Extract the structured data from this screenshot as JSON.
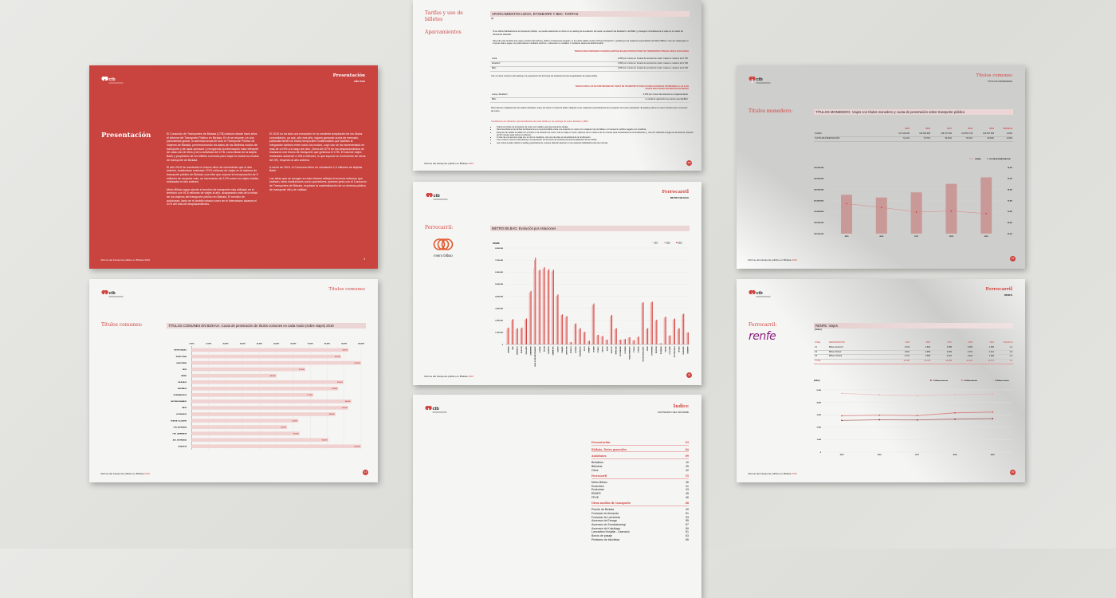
{
  "colors": {
    "accent": "#cf4540",
    "page_red": "#c9433f",
    "bar_light": "#f0d2d1",
    "renfe": "#8a1f80"
  },
  "common": {
    "logo_text": "ctb",
    "footer_text": "Informe del transporte público en Bizkaia",
    "footer_year": "2019"
  },
  "presentacion": {
    "header_title": "Presentación",
    "header_sub": "AÑO 2019",
    "heading": "Presentación",
    "page_number": "3",
    "col1": [
      "El Consorcio de Transportes de Bizkaia (CTB) elabora desde hace años el informe del Transporte Público en Bizkaia. En él se resume, en una panorámica global, la actividad anual de todo el Transporte Público de Viajeros de Bizkaia, pormenorizando los datos de los distintos modos de transporte y de cada operador y recogiendo la información más relevante de cada uno de ellos y de la actividad del CTB, como titular de la tarjeta Barik y propietario de los billetes comunes para viajar en todos los modos de transporte de Bizkaia.",
      "El año 2019 ha mantenido el mismo ritmo de crecimiento que el año anterior, habiéndose realizado 179,9 millones de viajes en el sistema de transporte público de Bizkaia, una cifra que supone la incorporación de 5 millones de usuarios más, un incremento de 2,9% sobre los viajes totales realizados el año anterior.",
      "Metro Bilbao sigue siendo el servicio de transporte más utilizado en el territorio con 91,6 millones de viajes al año, acaparando más de la mitad de los viajeros del transporte público en Bizkaia. El servicio de autobuses, tanto en el ámbito urbano como en el interurbano alcanza el 31% del total de desplazamientos."
    ],
    "col2": [
      "El 2019 no ha sido una excepción en la creciente aceptación de los títulos comunitarios, ya que, año tras año, siguen ganando cuota de mercado, particularmente los títulos temporales multimodales que facilitan la integración tarifaria entre todos los modos, cuyo uso se ha incrementado en más de un 5% a lo largo del año. Cerca del 87% de los desplazamientos se realizaron con títulos de transporte que gestiona el CTB. El total de viajes realizados asciende a 155,8 millones, lo que supone un incremento de cerca del 3%, respecto al año anterior.",
      "A cierre de 2019, el Consorcio tiene en circulación 1,9 millones de tarjetas Barik.",
      "Las cifras que se recogen en este informe reflejan el enorme esfuerzo que realizan, tanto instituciones como operadores, quienes junto con el Consorcio de Transportes de Bizkaia, impulsan la materialización de un sistema público de transporte útil y de calidad."
    ]
  },
  "tarifas": {
    "side_title": "Tarifas y uso de billetes",
    "side_sub": "Aparcamientos",
    "page_number": "100",
    "bar_title": "APARCAMIENTOS LEIOA, ETXEBARRI Y BEC. TARIFAS",
    "unit": "(€)",
    "intro": [
      "Si se utiliza habitualmente el transporte público, se puede estacionar el coche en el parking de la estación de Leioa, la estación de Etxebarri o del BEC y proseguir cómodamente el viaje en el medio de transporte deseado.",
      "Para ello solo tendrás que coger el ticket del parking, utilizar el transporte elegido y a la vuelta validar ambos (Ticket transporte* y parking) en la máquina expendedora de Metro Bilbao. Una vez dispongas el importe total a pagar, se podrá abonar mediante efectivo, o abonarlo en metálico o mediante tarjeta de débito/crédito."
    ],
    "table1_title": "TARIFAS PARA PERSONAS USUARIAS HABITUALES QUE PORTAN TICKET DE TRANSPORTE PÚBLICO HASTA 24:00 HORAS",
    "table1": [
      {
        "name": "Leioa",
        "value": "0,050 por minuto en horario de servicio de metro, hasta un máximo de 0,700"
      },
      {
        "name": "Etxebarri",
        "value": "0,050 por minuto en horario de servicio de metro, hasta un máximo de 0,700"
      },
      {
        "name": "BEC",
        "value": "0,050 por minuto en horario de servicio de metro, hasta un máximo de 0,700"
      }
    ],
    "note1": "Con el cierre nocturno del parking o la superación de 24 horas de estancia termina la aplicación de estas tarifas.",
    "table2_title": "TARIFAS PARA LOS NO PORTADORES DE TICKET DE TRANSPORTE PÚBLICO PARA ESTANCIAS SUPERIORES A LAS 24:00 HORAS NOCTURNAS SIN SERVICIO DE METRO",
    "table2": [
      {
        "name": "Leioa y Etxebarri",
        "value": "0,050 por minuto de estancia en el aparcamiento"
      },
      {
        "name": "BEC",
        "value": "La tarifa de aplicación los precios que fija BEC"
      }
    ],
    "note2": "Para abonar cualquiera de las tarifas indicadas, antes de retirar el vehículo deben dirigirse a las máquinas expendedoras de la estación de Leioa y Etxebarri. El parking ofrece el mismo horario que el servicio de metro.",
    "conditions_title": "Condiciones de utilización para beneficiarse de estas tarifas en los parkings de Leioa, Etxebarri y BEC:",
    "conditions": [
      "Todos los títulos de transporte de metro son válidos para las anteriores tarifas.",
      "Para beneficiarse de dichas bonificaciones es imprescindible entrar a la estación en metro con cualquier tipo de billete o el transporte público pagado con crediticia.",
      "Después de validar la salida con el ticket en la estación de metro, tras su viaje en metro, dispone de un máximo de 15 minutos para beneficiarse de la bonificación y, una vez realizado el pago de la estancia, dispone de 60 minutos para retirar el vehículo.",
      "Si tras de una persona viaja con el mismo crediticia, solo una de ellas se beneficiará de la bonificación.",
      "Con el cierre nocturno del parking o la superación de 24 horas de estancia termina la aplicación de las tarifas.",
      "Las motos pueden utilizar el parking gratuitamente, aunque deberán aparcar en los espacios habilitados para las mismas."
    ]
  },
  "metro": {
    "header_title": "Ferrocarril",
    "header_sub": "METRO BILBAO",
    "side_title": "Ferrocarril:",
    "logo_text": "metro bilbao",
    "page_number": "36",
    "chart_title": "METRO BILBAO. Evolución por estaciones"
  },
  "indice": {
    "header_title": "Índice",
    "header_sub": "CONTENIDO DEL INFORME",
    "items": [
      {
        "label": "Presentación",
        "page": "03",
        "section": true
      },
      {
        "label": "Bizkaia. Datos generales",
        "page": "04",
        "section": true
      },
      {
        "label": "Autobuses",
        "page": "09",
        "section": true
      },
      {
        "label": "Bizkaibus",
        "page": "10"
      },
      {
        "label": "Bilbobus",
        "page": "25"
      },
      {
        "label": "Otros",
        "page": "32"
      },
      {
        "label": "Ferrocarril",
        "page": "35",
        "section": true
      },
      {
        "label": "Metro Bilbao",
        "page": "36"
      },
      {
        "label": "Euskotren",
        "page": "41"
      },
      {
        "label": "Euskotran",
        "page": "43"
      },
      {
        "label": "RENFE",
        "page": "45"
      },
      {
        "label": "FEVE",
        "page": "46"
      },
      {
        "label": "Otros medios de transporte",
        "page": "48",
        "section": true
      },
      {
        "label": "Puente de Bizkaia",
        "page": "49"
      },
      {
        "label": "Funicular de Artxanda",
        "page": "51"
      },
      {
        "label": "Funicular de Larreineta",
        "page": "53"
      },
      {
        "label": "Ascensor de Ereaga",
        "page": "55"
      },
      {
        "label": "Ascensor de Zumalakarregi",
        "page": "57"
      },
      {
        "label": "Ascensor de Kukullaga",
        "page": "59"
      },
      {
        "label": "Lanzadera Hospital - Usansolo",
        "page": "61"
      },
      {
        "label": "Bonos de pasaje",
        "page": "63"
      },
      {
        "label": "Préstamo de bicicletas",
        "page": "65"
      }
    ]
  },
  "monedero": {
    "header_title": "Títulos comunes",
    "header_sub": "TÍTULOS MONEDERO",
    "side_title": "Títulos monedero:",
    "page_number": "25",
    "bar_title": "TÍTULOS MONEDERO. Viajes con títulos monedero y cuota de penetración sobre transporte público",
    "table": {
      "headers": [
        "2015",
        "2016",
        "2017",
        "2018",
        "2019",
        "%2018-19"
      ],
      "rows": [
        {
          "label": "VIAJES",
          "values": [
            "117.615.029",
            "116.381.965",
            "118.707.400",
            "122.551.749",
            "125.507.659",
            "2,29%"
          ]
        },
        {
          "label": "CUOTA DE PENETRACIÓN",
          "values": [
            "71,42%",
            "70,76%",
            "69,91%",
            "70,10%",
            "69,64%",
            "-0,45%"
          ]
        }
      ]
    }
  },
  "renfe": {
    "header_title": "Ferrocarril",
    "header_sub": "RENFE",
    "side_title": "Ferrocarril:",
    "logo_text": "renfe",
    "page_number": "45",
    "bar_title": "RENFE. Viajes",
    "unit": "(miles)",
    "table": {
      "headers": [
        "LÍNEA",
        "DENOMINACIÓN",
        "2015",
        "2016",
        "2017",
        "2018",
        "2019",
        "%2018-19"
      ],
      "rows": [
        [
          "C1",
          "Bilbao-Santurtzi",
          "2.544",
          "2.600",
          "2.585",
          "2.652",
          "2.690",
          "1,4"
        ],
        [
          "C2",
          "Bilbao-Muskiz",
          "2.914",
          "2.966",
          "2.929",
          "3.157",
          "3.214",
          "1,8"
        ],
        [
          "C3",
          "Bilbao-Orduña",
          "4.721",
          "4.595",
          "4.547",
          "4.610",
          "4.669",
          "1,3"
        ]
      ],
      "total": [
        "TOTAL",
        "",
        "10.180",
        "10.138",
        "10.065",
        "10.420",
        "10.574",
        "1,4"
      ]
    }
  },
  "comunes": {
    "header_title": "Títulos comunes",
    "side_title": "Títulos comunes:",
    "page_number": "14",
    "bar_title": "TÍTULOS COMUNES EN BIZKAIA. Cuota de penetración de títulos comunes en cada modo (sobre viajes) 2019"
  },
  "chart_data": [
    {
      "type": "bar",
      "title": "METRO BILBAO. Evolución por estaciones",
      "ylabel": "VIAJES",
      "ylim": [
        0,
        8000000
      ],
      "yticks": [
        "0",
        "1.000.000",
        "2.000.000",
        "3.000.000",
        "4.000.000",
        "5.000.000",
        "6.000.000",
        "7.000.000",
        "8.000.000"
      ],
      "legend": "top-right",
      "categories": [
        "BASAURI",
        "ARIZ",
        "ETXEBARRI",
        "BOLUETA",
        "SANTUTXU",
        "BASARRATE",
        "ZAZPIKALEAK/CASCO VIEJO",
        "ABANDO",
        "MOYUA",
        "INDAUTXU",
        "SAN MAMÉS",
        "DEUSTO",
        "SARRIKO",
        "SAN INAZIO",
        "LUTXANA",
        "ERANDIO",
        "ASTRABUDUA",
        "LEIOA",
        "LAMIAKO",
        "AREETA",
        "GOBELA",
        "NEGURI",
        "AIBOA",
        "ALGORTA",
        "BIDEZABAL",
        "IBARBENGOA",
        "BERANGO",
        "LARRABASTERRA",
        "SOPELA",
        "URDULIZ",
        "GURUTZETA/CRUCES",
        "ANSIO",
        "BARAKALDO",
        "BAGATZA",
        "URBINAGA",
        "SESTAO",
        "ABATXOLO",
        "PORTUGALETE",
        "PEÑOTA",
        "SANTURTZI",
        "KABIEZES"
      ],
      "series": [
        {
          "name": "2017",
          "color": "#f2c9c7",
          "values": [
            1300000,
            1950000,
            1250000,
            1300000,
            2050000,
            4300000,
            6350000,
            6100000,
            6250000,
            6100000,
            6000000,
            4000000,
            2400000,
            2250000,
            180000,
            1650000,
            1250000,
            980000,
            280000,
            3250000,
            760000,
            660000,
            380000,
            2300000,
            1250000,
            380000,
            430000,
            560000,
            330000,
            600000,
            3400000,
            1250000,
            3450000,
            1950000,
            90000,
            2200000,
            700000,
            2050000,
            1250000,
            2450000,
            950000
          ]
        },
        {
          "name": "2018",
          "color": "#e99a97",
          "values": [
            1350000,
            2050000,
            1300000,
            1350000,
            2100000,
            4350000,
            7000000,
            6150000,
            6300000,
            6150000,
            6100000,
            4050000,
            2450000,
            2300000,
            190000,
            1700000,
            1300000,
            1000000,
            290000,
            3300000,
            780000,
            680000,
            390000,
            2400000,
            1300000,
            390000,
            440000,
            580000,
            340000,
            630000,
            3450000,
            1300000,
            3500000,
            2000000,
            95000,
            2250000,
            730000,
            2100000,
            1300000,
            2500000,
            980000
          ]
        },
        {
          "name": "2019",
          "color": "#d2423d",
          "values": [
            1400000,
            2100000,
            1350000,
            1400000,
            2150000,
            4450000,
            7200000,
            6200000,
            6400000,
            6250000,
            6200000,
            4150000,
            2500000,
            2350000,
            200000,
            1750000,
            1350000,
            1050000,
            300000,
            3400000,
            800000,
            700000,
            400000,
            2450000,
            1350000,
            400000,
            450000,
            600000,
            350000,
            650000,
            3500000,
            1350000,
            3550000,
            2050000,
            100000,
            2300000,
            750000,
            2150000,
            1350000,
            2550000,
            1000000
          ]
        }
      ]
    },
    {
      "type": "bar+line",
      "title": "TÍTULOS MONEDERO. Viajes con títulos monedero y cuota de penetración sobre transporte público",
      "categories": [
        "2015",
        "2016",
        "2017",
        "2018",
        "2019"
      ],
      "legend": "top-right",
      "ylim": [
        100000000,
        130000000
      ],
      "yticks": [
        "100.000.000",
        "105.000.000",
        "110.000.000",
        "115.000.000",
        "120.000.000",
        "125.000.000",
        "130.000.000"
      ],
      "y2lim": [
        66,
        78
      ],
      "y2ticks": [
        "66,0%",
        "68,0%",
        "70,0%",
        "72,0%",
        "74,0%",
        "76,0%",
        "78,0%"
      ],
      "series": [
        {
          "name": "VIAJES",
          "type": "bar",
          "values": [
            117615029,
            116381965,
            118707400,
            122551749,
            125507659
          ]
        },
        {
          "name": "CUOTA DE PENETRACIÓN",
          "type": "line",
          "axis": "right",
          "values": [
            71.42,
            70.76,
            69.91,
            70.1,
            69.64
          ]
        }
      ]
    },
    {
      "type": "line",
      "title": "RENFE. Viajes",
      "ylabel": "(miles)",
      "categories": [
        "2015",
        "2016",
        "2017",
        "2018",
        "2019"
      ],
      "ylim": [
        0,
        5000
      ],
      "yticks": [
        "0",
        "1.000",
        "2.000",
        "3.000",
        "4.000",
        "5.000"
      ],
      "legend": "top-right",
      "series": [
        {
          "name": "C1 Bilbao-Santurtzi",
          "color": "#7a1412",
          "values": [
            2544,
            2600,
            2585,
            2652,
            2690
          ]
        },
        {
          "name": "C2 Bilbao-Muskiz",
          "color": "#d2423d",
          "values": [
            2914,
            2966,
            2929,
            3157,
            3214
          ]
        },
        {
          "name": "C3 Bilbao-Orduña",
          "color": "#eba9a6",
          "values": [
            4721,
            4595,
            4547,
            4610,
            4669
          ]
        }
      ]
    },
    {
      "type": "bar",
      "orientation": "horizontal",
      "title": "TÍTULOS COMUNES EN BIZKAIA. Cuota de penetración de títulos comunes en cada modo (sobre viajes) 2019",
      "xlim": [
        0,
        100
      ],
      "xticks": [
        "0,00%",
        "10,00%",
        "20,00%",
        "30,00%",
        "40,00%",
        "50,00%",
        "60,00%",
        "70,00%",
        "80,00%",
        "90,00%",
        "100,00%"
      ],
      "categories": [
        "METRO BILBAO",
        "EUSKO TRAN",
        "EUSKOTREN",
        "FEVE",
        "RENFE",
        "BILBOBUS",
        "BIZKAIBUS",
        "ETXEBARRI BUS",
        "AUTOBUS ERANDIO",
        "KBUS",
        "LEJONA BUS",
        "PUENTE COLGANTE",
        "FUN. ARTXANDA",
        "FUN. LARRENETA",
        "ASC. DE EREAGA",
        "BIZIKLETA"
      ],
      "values": [
        92.57,
        88.21,
        100.0,
        67.05,
        49.94,
        89.63,
        86.48,
        71.79,
        94.2,
        92.3,
        84.85,
        62.95,
        56.31,
        63.63,
        80.61,
        100.0
      ],
      "labels": [
        "92,57%",
        "88,21%",
        "100,00%",
        "67,05%",
        "49,94%",
        "89,63%",
        "86,48%",
        "71,79%",
        "94,20%",
        "92,30%",
        "84,85%",
        "62,95%",
        "56,31%",
        "63,63%",
        "80,61%",
        "100,00%"
      ]
    }
  ]
}
